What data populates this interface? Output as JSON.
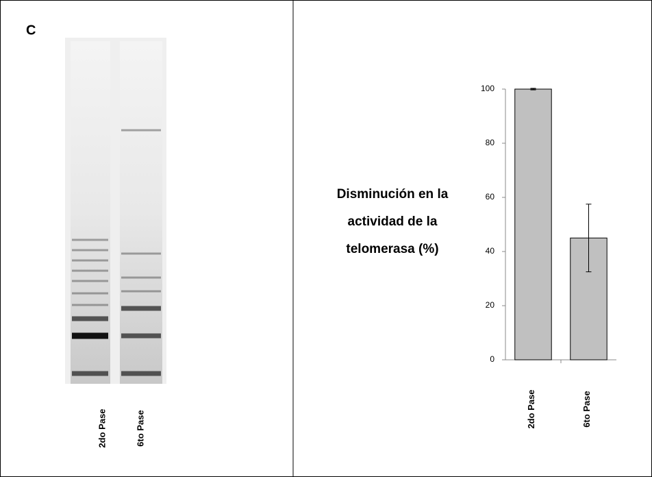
{
  "panel_label": "C",
  "gel": {
    "lanes": [
      "2do Pase",
      "6to Pase"
    ]
  },
  "chart_data": {
    "type": "bar",
    "y_label": [
      "Disminución en la",
      "actividad de la",
      "telomerasa (%)"
    ],
    "categories": [
      "2do Pase",
      "6to Pase"
    ],
    "values": [
      100,
      45
    ],
    "errors": [
      0.3,
      12.5
    ],
    "color": "#c0c0c0",
    "ylim": [
      0,
      100
    ],
    "yticks": [
      0,
      20,
      40,
      60,
      80,
      100
    ]
  }
}
